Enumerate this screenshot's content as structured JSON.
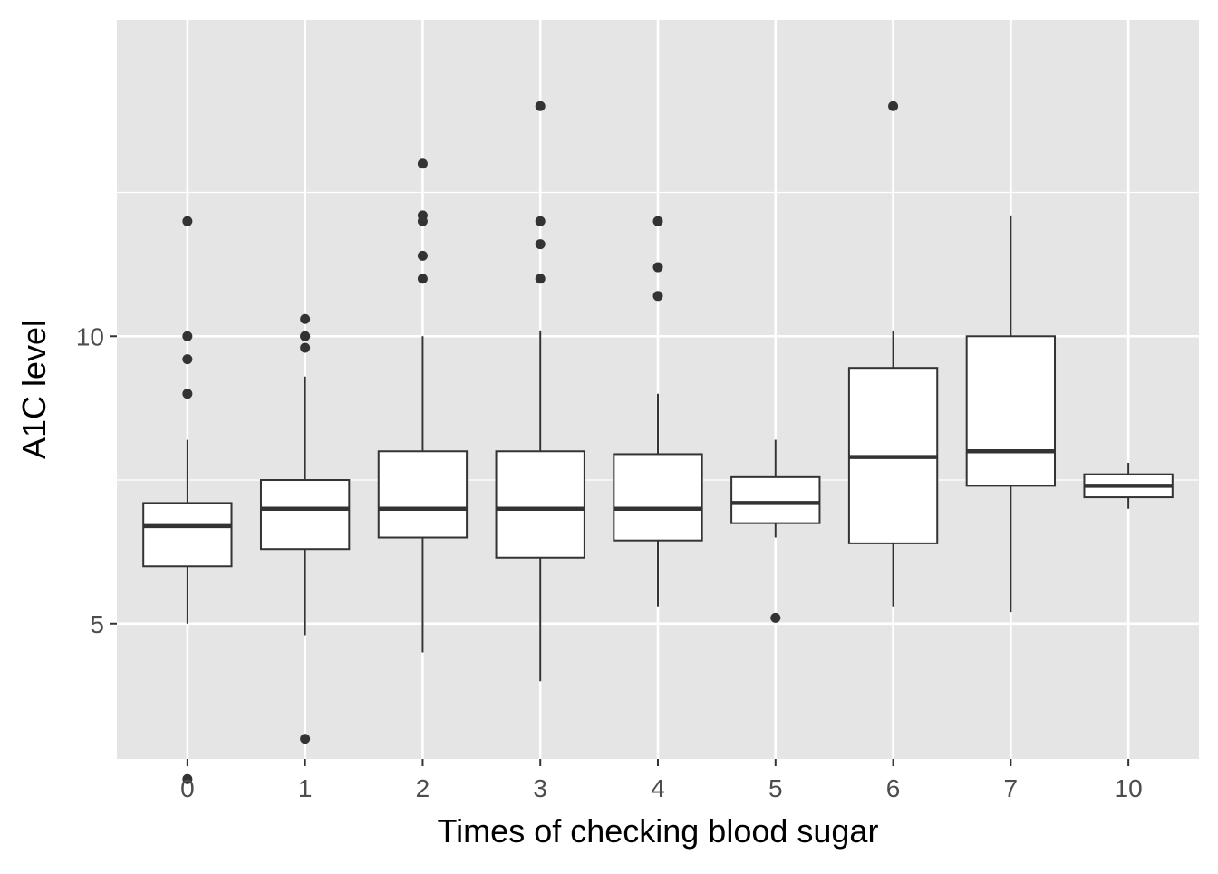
{
  "chart_data": {
    "type": "boxplot",
    "xlabel": "Times of checking blood sugar",
    "ylabel": "A1C level",
    "ylim": [
      2.65,
      15.5
    ],
    "y_major_ticks": [
      5,
      10
    ],
    "y_minor_ticks": [
      2.5,
      7.5,
      12.5
    ],
    "grid": true,
    "background": "#e5e5e5",
    "grid_color": "#ffffff",
    "box_fill": "#ffffff",
    "line_color": "#333333",
    "categories": [
      "0",
      "1",
      "2",
      "3",
      "4",
      "5",
      "6",
      "7",
      "10"
    ],
    "boxes": [
      {
        "category": "0",
        "whisker_low": 5.0,
        "q1": 6.0,
        "median": 6.7,
        "q3": 7.1,
        "whisker_high": 8.2,
        "outliers": [
          12.0,
          10.0,
          9.6,
          9.0,
          2.3
        ]
      },
      {
        "category": "1",
        "whisker_low": 4.8,
        "q1": 6.3,
        "median": 7.0,
        "q3": 7.5,
        "whisker_high": 9.3,
        "outliers": [
          10.3,
          10.0,
          10.0,
          9.8,
          3.0
        ]
      },
      {
        "category": "2",
        "whisker_low": 4.5,
        "q1": 6.5,
        "median": 7.0,
        "q3": 8.0,
        "whisker_high": 10.0,
        "outliers": [
          13.0,
          12.1,
          12.0,
          11.4,
          11.0
        ]
      },
      {
        "category": "3",
        "whisker_low": 4.0,
        "q1": 6.15,
        "median": 7.0,
        "q3": 8.0,
        "whisker_high": 10.1,
        "outliers": [
          14.0,
          12.0,
          11.6,
          11.0
        ]
      },
      {
        "category": "4",
        "whisker_low": 5.3,
        "q1": 6.45,
        "median": 7.0,
        "q3": 7.95,
        "whisker_high": 9.0,
        "outliers": [
          12.0,
          11.2,
          10.7
        ]
      },
      {
        "category": "5",
        "whisker_low": 6.5,
        "q1": 6.75,
        "median": 7.1,
        "q3": 7.55,
        "whisker_high": 8.2,
        "outliers": [
          5.1
        ]
      },
      {
        "category": "6",
        "whisker_low": 5.3,
        "q1": 6.4,
        "median": 7.9,
        "q3": 9.45,
        "whisker_high": 10.1,
        "outliers": [
          14.0
        ]
      },
      {
        "category": "7",
        "whisker_low": 5.2,
        "q1": 7.4,
        "median": 8.0,
        "q3": 10.0,
        "whisker_high": 12.1,
        "outliers": []
      },
      {
        "category": "10",
        "whisker_low": 7.0,
        "q1": 7.2,
        "median": 7.4,
        "q3": 7.6,
        "whisker_high": 7.8,
        "outliers": []
      }
    ]
  }
}
